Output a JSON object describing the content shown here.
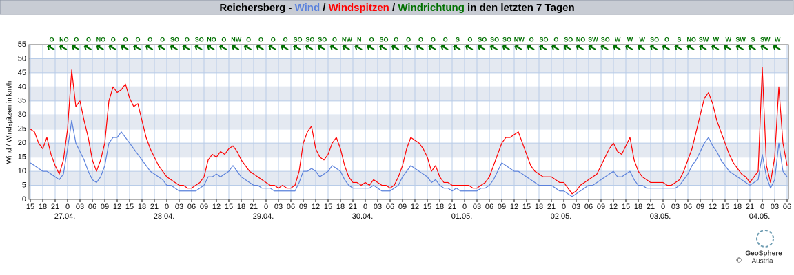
{
  "chart_data": {
    "type": "line",
    "title": {
      "prefix": "Reichersberg - ",
      "separator": " / ",
      "suffix": " in den letzten 7 Tagen"
    },
    "y_label": "Wind / Windspitzen in km/h",
    "categories": [
      "15",
      null,
      null,
      "18",
      null,
      null,
      "21",
      null,
      null,
      "0",
      null,
      null,
      "03",
      null,
      null,
      "06",
      null,
      null,
      "09",
      null,
      null,
      "12",
      null,
      null,
      "15",
      null,
      null,
      "18",
      null,
      null,
      "21",
      null,
      null,
      "0",
      null,
      null,
      "03",
      null,
      null,
      "06",
      null,
      null,
      "09",
      null,
      null,
      "12",
      null,
      null,
      "15",
      null,
      null,
      "18",
      null,
      null,
      "21",
      null,
      null,
      "0",
      null,
      null,
      "03",
      null,
      null,
      "06",
      null,
      null,
      "09",
      null,
      null,
      "12",
      null,
      null,
      "15",
      null,
      null,
      "18",
      null,
      null,
      "21",
      null,
      null,
      "0",
      null,
      null,
      "03",
      null,
      null,
      "06",
      null,
      null,
      "09",
      null,
      null,
      "12",
      null,
      null,
      "15",
      null,
      null,
      "18",
      null,
      null,
      "21",
      null,
      null,
      "0",
      null,
      null,
      "03",
      null,
      null,
      "06",
      null,
      null,
      "09",
      null,
      null,
      "12",
      null,
      null,
      "15",
      null,
      null,
      "18",
      null,
      null,
      "21",
      null,
      null,
      "0",
      null,
      null,
      "03",
      null,
      null,
      "06",
      null,
      null,
      "09",
      null,
      null,
      "12",
      null,
      null,
      "15",
      null,
      null,
      "18",
      null,
      null,
      "21",
      null,
      null,
      "0",
      null,
      null,
      "03",
      null,
      null,
      "06",
      null,
      null,
      "09",
      null,
      null,
      "12",
      null,
      null,
      "15",
      null,
      null,
      "18",
      null,
      null,
      "21",
      null,
      null,
      "0",
      null,
      null,
      "03",
      null,
      null,
      "06"
    ],
    "day_labels": [
      "27.04.",
      "28.04.",
      "29.04.",
      "30.04.",
      "01.05.",
      "02.05.",
      "03.05.",
      "04.05."
    ],
    "series": [
      {
        "name": "Wind",
        "color": "#5b82dc",
        "values": [
          13,
          12,
          11,
          10,
          10,
          9,
          8,
          7,
          9,
          18,
          28,
          20,
          17,
          14,
          10,
          7,
          6,
          8,
          12,
          20,
          22,
          22,
          24,
          22,
          20,
          18,
          16,
          14,
          12,
          10,
          9,
          8,
          7,
          5,
          5,
          4,
          3,
          3,
          3,
          3,
          3,
          4,
          5,
          8,
          8,
          9,
          8,
          9,
          10,
          12,
          10,
          8,
          7,
          6,
          5,
          5,
          4,
          4,
          4,
          3,
          3,
          3,
          3,
          3,
          3,
          6,
          10,
          10,
          11,
          10,
          8,
          9,
          10,
          12,
          11,
          10,
          7,
          5,
          4,
          4,
          4,
          4,
          4,
          5,
          4,
          3,
          3,
          3,
          4,
          5,
          8,
          10,
          12,
          11,
          10,
          9,
          8,
          6,
          7,
          5,
          4,
          4,
          3,
          4,
          3,
          3,
          3,
          3,
          3,
          4,
          4,
          5,
          7,
          10,
          13,
          12,
          11,
          10,
          10,
          9,
          8,
          7,
          6,
          5,
          5,
          5,
          5,
          4,
          3,
          3,
          2,
          1,
          2,
          3,
          4,
          5,
          5,
          6,
          7,
          8,
          9,
          10,
          8,
          8,
          9,
          10,
          7,
          5,
          5,
          4,
          4,
          4,
          4,
          4,
          4,
          4,
          4,
          5,
          7,
          9,
          12,
          14,
          17,
          20,
          22,
          19,
          17,
          14,
          12,
          10,
          9,
          8,
          7,
          6,
          5,
          6,
          7,
          16,
          8,
          4,
          7,
          20,
          10,
          8
        ]
      },
      {
        "name": "Windspitzen",
        "color": "#ff0000",
        "values": [
          25,
          24,
          20,
          18,
          22,
          16,
          12,
          9,
          14,
          25,
          46,
          33,
          35,
          28,
          22,
          14,
          10,
          14,
          20,
          35,
          40,
          38,
          39,
          41,
          36,
          33,
          34,
          28,
          22,
          18,
          15,
          12,
          10,
          8,
          7,
          6,
          5,
          5,
          4,
          4,
          5,
          6,
          8,
          14,
          16,
          15,
          17,
          16,
          18,
          19,
          17,
          14,
          12,
          10,
          9,
          8,
          7,
          6,
          5,
          5,
          4,
          5,
          4,
          4,
          5,
          10,
          20,
          24,
          26,
          18,
          15,
          14,
          16,
          20,
          22,
          18,
          12,
          8,
          6,
          6,
          5,
          6,
          5,
          7,
          6,
          5,
          5,
          4,
          5,
          8,
          12,
          18,
          22,
          21,
          20,
          18,
          15,
          10,
          12,
          8,
          6,
          6,
          5,
          5,
          5,
          5,
          5,
          4,
          4,
          5,
          6,
          8,
          12,
          16,
          20,
          22,
          22,
          23,
          24,
          20,
          16,
          12,
          10,
          9,
          8,
          8,
          8,
          7,
          6,
          6,
          4,
          2,
          3,
          5,
          6,
          7,
          8,
          9,
          12,
          15,
          18,
          20,
          17,
          16,
          19,
          22,
          14,
          10,
          8,
          7,
          6,
          6,
          6,
          6,
          5,
          5,
          6,
          7,
          10,
          14,
          18,
          24,
          30,
          36,
          38,
          34,
          28,
          24,
          20,
          16,
          13,
          11,
          9,
          8,
          6,
          8,
          10,
          47,
          12,
          6,
          15,
          40,
          20,
          12
        ]
      }
    ],
    "wind_direction": {
      "name": "Windrichtung",
      "color": "#007000",
      "labels": [
        "O",
        "NO",
        "O",
        "O",
        "NO",
        "O",
        "O",
        "O",
        "O",
        "O",
        "SO",
        "O",
        "SO",
        "NO",
        "O",
        "NW",
        "O",
        "O",
        "O",
        "O",
        "SO",
        "SO",
        "SO",
        "O",
        "NW",
        "N",
        "O",
        "SO",
        "O",
        "O",
        "O",
        "O",
        "O",
        "S",
        "O",
        "SO",
        "SO",
        "SO",
        "NW",
        "O",
        "SO",
        "O",
        "SO",
        "NO",
        "SW",
        "SO",
        "W",
        "W",
        "W",
        "SO",
        "O",
        "S",
        "NO",
        "SW",
        "W",
        "W",
        "SW",
        "S",
        "SW",
        "W"
      ]
    },
    "ylim": [
      0,
      55
    ],
    "yticks": [
      0,
      5,
      10,
      15,
      20,
      25,
      30,
      35,
      40,
      45,
      50,
      55
    ],
    "grid": true,
    "logo": {
      "name": "GeoSphere",
      "sub": "Austria",
      "copyright": "©"
    }
  }
}
